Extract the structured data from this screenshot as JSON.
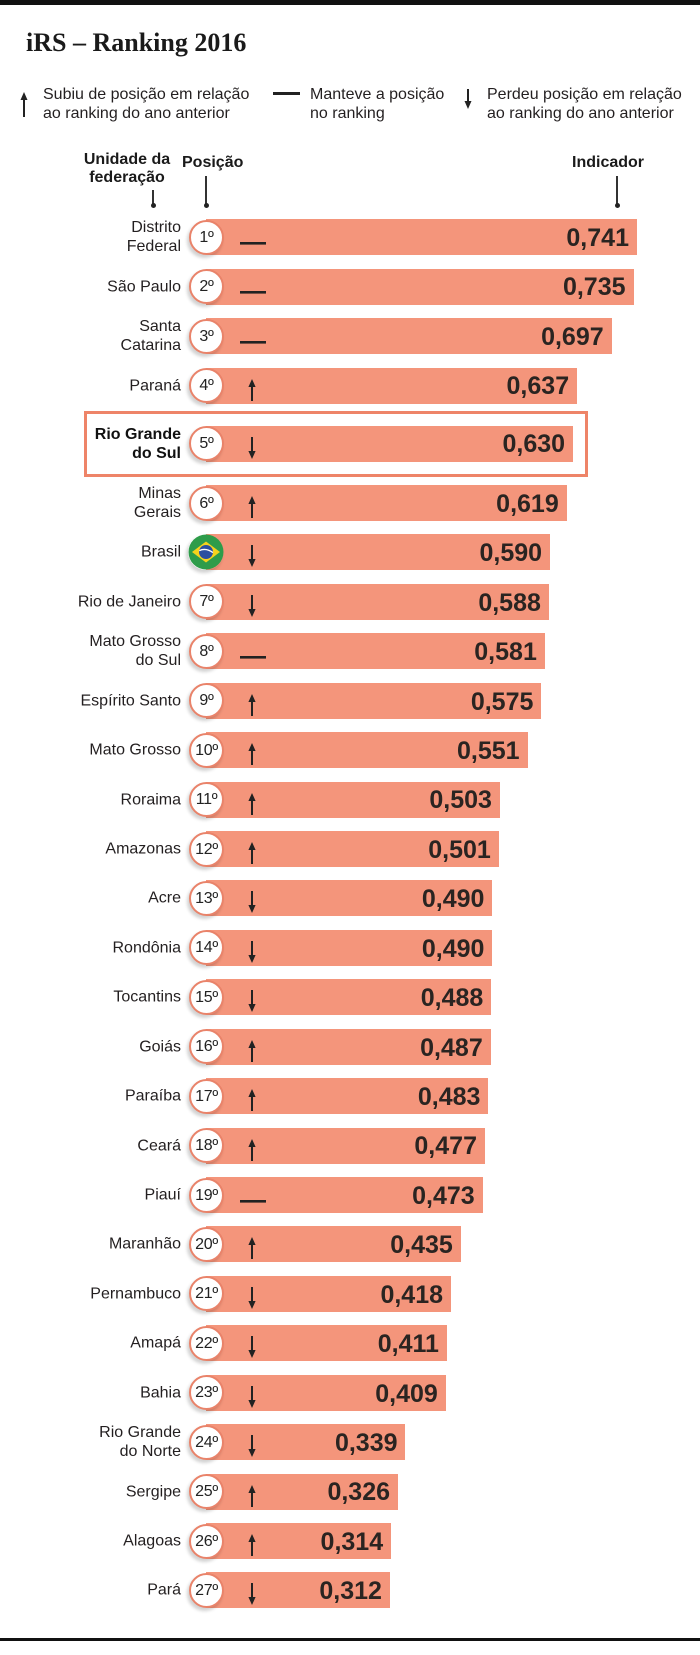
{
  "title": "iRS – Ranking 2016",
  "legend": {
    "items": [
      {
        "icon": "arrow-up-icon",
        "text": "Subiu de posição em relação\nao ranking do ano anterior"
      },
      {
        "icon": "dash-icon",
        "text": "Manteve a posição\nno ranking"
      },
      {
        "icon": "arrow-down-icon",
        "text": "Perdeu posição em relação\nao ranking do ano anterior"
      }
    ]
  },
  "columns": {
    "unit": "Unidade da\nfederação",
    "position": "Posição",
    "indicator": "Indicador"
  },
  "colors": {
    "bar": "#F4957B",
    "accent": "#EE8468",
    "badge_border": "#E9836A",
    "text": "#231F20",
    "rule": "#111111"
  },
  "chart_data": {
    "type": "bar",
    "orientation": "horizontal",
    "title": "iRS – Ranking 2016",
    "xlabel": "Indicador",
    "ylabel": "Unidade da federação",
    "grid": false,
    "categories": [
      "Distrito\nFederal",
      "São Paulo",
      "Santa\nCatarina",
      "Paraná",
      "Rio Grande\ndo Sul",
      "Minas\nGerais",
      "Brasil",
      "Rio de Janeiro",
      "Mato Grosso\ndo Sul",
      "Espírito Santo",
      "Mato Grosso",
      "Roraima",
      "Amazonas",
      "Acre",
      "Rondônia",
      "Tocantins",
      "Goiás",
      "Paraíba",
      "Ceará",
      "Piauí",
      "Maranhão",
      "Pernambuco",
      "Amapá",
      "Bahia",
      "Rio Grande\ndo Norte",
      "Sergipe",
      "Alagoas",
      "Pará"
    ],
    "values": [
      0.741,
      0.735,
      0.697,
      0.637,
      0.63,
      0.619,
      0.59,
      0.588,
      0.581,
      0.575,
      0.551,
      0.503,
      0.501,
      0.49,
      0.49,
      0.488,
      0.487,
      0.483,
      0.477,
      0.473,
      0.435,
      0.418,
      0.411,
      0.409,
      0.339,
      0.326,
      0.314,
      0.312
    ],
    "value_labels": [
      "0,741",
      "0,735",
      "0,697",
      "0,637",
      "0,630",
      "0,619",
      "0,590",
      "0,588",
      "0,581",
      "0,575",
      "0,551",
      "0,503",
      "0,501",
      "0,490",
      "0,490",
      "0,488",
      "0,487",
      "0,483",
      "0,477",
      "0,473",
      "0,435",
      "0,418",
      "0,411",
      "0,409",
      "0,339",
      "0,326",
      "0,314",
      "0,312"
    ],
    "positions": [
      "1º",
      "2º",
      "3º",
      "4º",
      "5º",
      "6º",
      null,
      "7º",
      "8º",
      "9º",
      "10º",
      "11º",
      "12º",
      "13º",
      "14º",
      "15º",
      "16º",
      "17º",
      "18º",
      "19º",
      "20º",
      "21º",
      "22º",
      "23º",
      "24º",
      "25º",
      "26º",
      "27º"
    ],
    "trends": [
      "dash-icon",
      "dash-icon",
      "dash-icon",
      "arrow-up-icon",
      "arrow-down-icon",
      "arrow-up-icon",
      "arrow-down-icon",
      "arrow-down-icon",
      "dash-icon",
      "arrow-up-icon",
      "arrow-up-icon",
      "arrow-up-icon",
      "arrow-up-icon",
      "arrow-down-icon",
      "arrow-down-icon",
      "arrow-down-icon",
      "arrow-up-icon",
      "arrow-up-icon",
      "arrow-up-icon",
      "dash-icon",
      "arrow-up-icon",
      "arrow-down-icon",
      "arrow-down-icon",
      "arrow-down-icon",
      "arrow-down-icon",
      "arrow-up-icon",
      "arrow-up-icon",
      "arrow-down-icon"
    ],
    "reference_row": {
      "index": 6,
      "icon": "brazil-flag-icon"
    },
    "highlight_index": 4
  }
}
